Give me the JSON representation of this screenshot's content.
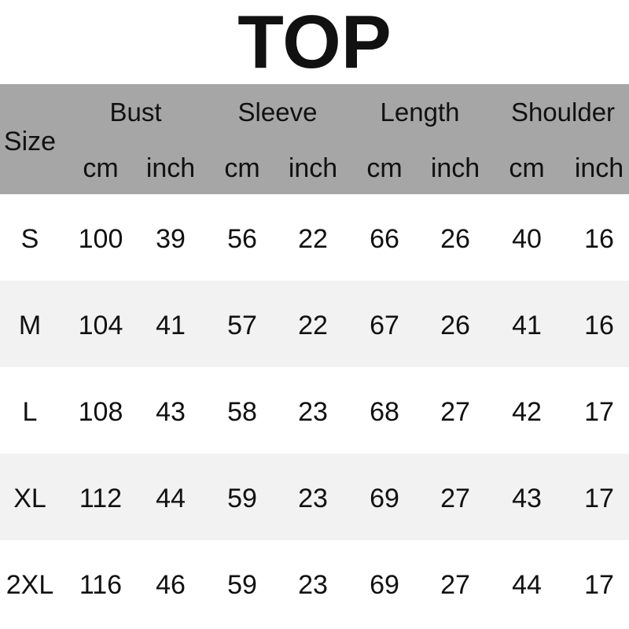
{
  "title": "TOP",
  "header": {
    "size_label": "Size",
    "groups": [
      "Bust",
      "Sleeve",
      "Length",
      "Shoulder"
    ],
    "units": [
      "cm",
      "inch",
      "cm",
      "inch",
      "cm",
      "inch",
      "cm",
      "inch"
    ]
  },
  "rows": [
    {
      "size": "S",
      "values": [
        "100",
        "39",
        "56",
        "22",
        "66",
        "26",
        "40",
        "16"
      ]
    },
    {
      "size": "M",
      "values": [
        "104",
        "41",
        "57",
        "22",
        "67",
        "26",
        "41",
        "16"
      ]
    },
    {
      "size": "L",
      "values": [
        "108",
        "43",
        "58",
        "23",
        "68",
        "27",
        "42",
        "17"
      ]
    },
    {
      "size": "XL",
      "values": [
        "112",
        "44",
        "59",
        "23",
        "69",
        "27",
        "43",
        "17"
      ]
    },
    {
      "size": "2XL",
      "values": [
        "116",
        "46",
        "59",
        "23",
        "69",
        "27",
        "44",
        "17"
      ]
    }
  ],
  "colors": {
    "header_bg": "#a6a6a6",
    "alt_row_bg": "#f2f2f2",
    "text": "#111111"
  }
}
